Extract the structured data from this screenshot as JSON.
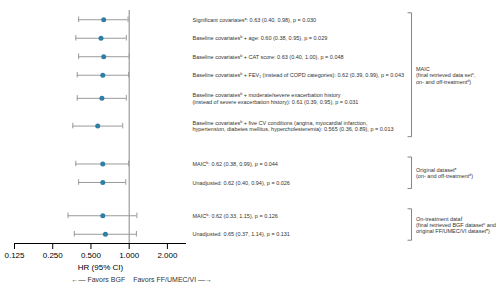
{
  "chart_data": {
    "type": "forest",
    "xlabel": "HR (95% CI)",
    "log": "x",
    "xlim": [
      0.125,
      2.828
    ],
    "xticks": [
      0.125,
      {
        "value": 0.25,
        "label": "0.250"
      },
      {
        "value": 0.5,
        "label": "0.500"
      },
      {
        "value": 1,
        "label": "1.000"
      },
      {
        "value": 2,
        "label": "2.000"
      }
    ],
    "grid": false,
    "reference_x": 1.0,
    "color": "#2e7fa3",
    "annotations": [
      "←— Favors BGF",
      "Favors FF/UMEC/VI —→"
    ],
    "groups": [
      {
        "label": "MAIC\n(final retrieved data setᶜ,\non- and off-treatmentᵈ)",
        "rows": [
          {
            "label": "Significant covariatesᵃ: 0.63 (0.40, 0.98), p = 0.030",
            "hr": 0.63,
            "ci_low": 0.4,
            "ci_high": 0.98
          },
          {
            "label": "Baseline covariatesᵇ + age: 0.60 (0.38, 0.95), p = 0.029",
            "hr": 0.6,
            "ci_low": 0.38,
            "ci_high": 0.95
          },
          {
            "label": "Baseline covariatesᵇ + CAT score: 0.63 (0.40, 1.00), p = 0.048",
            "hr": 0.63,
            "ci_low": 0.4,
            "ci_high": 1.0
          },
          {
            "label": "Baseline covariatesᵇ + FEV₁ (instead of COPD categories): 0.62 (0.39, 0.99), p = 0.043",
            "hr": 0.62,
            "ci_low": 0.39,
            "ci_high": 0.99
          },
          {
            "label": "Baseline covariatesᵇ + moderate/severe exacerbation history\n(instead of severe exacerbation history): 0.61 (0.39, 0.95), p = 0.031",
            "hr": 0.61,
            "ci_low": 0.39,
            "ci_high": 0.95
          },
          {
            "label": "Baseline covariatesᵇ + five CV conditions (angina, myocardial infarction,\nhypertension, diabetes mellitus, hypercholesteremia): 0.565 (0.36, 0.89), p = 0.013",
            "hr": 0.565,
            "ci_low": 0.36,
            "ci_high": 0.89
          }
        ]
      },
      {
        "label": "Original datasetᵉ\n(on- and off-treatmentᵈ)",
        "rows": [
          {
            "label": "MAICᵇ: 0.62 (0.38, 0.99), p = 0.044",
            "hr": 0.62,
            "ci_low": 0.38,
            "ci_high": 0.99
          },
          {
            "label": "Unadjusted: 0.62 (0.40, 0.94), p = 0.026",
            "hr": 0.62,
            "ci_low": 0.4,
            "ci_high": 0.94
          }
        ]
      },
      {
        "label": "On-treatment dataḟ\n(final retrieved BGF datasetᶜ and\noriginal FF/UMEC/VI datasetᵉ)",
        "rows": [
          {
            "label": "MAICᵇ: 0.62 (0.33, 1.15), p = 0.126",
            "hr": 0.62,
            "ci_low": 0.33,
            "ci_high": 1.15
          },
          {
            "label": "Unadjusted: 0.65 (0.37, 1.14), p = 0.131",
            "hr": 0.65,
            "ci_low": 0.37,
            "ci_high": 1.14
          }
        ]
      }
    ]
  }
}
